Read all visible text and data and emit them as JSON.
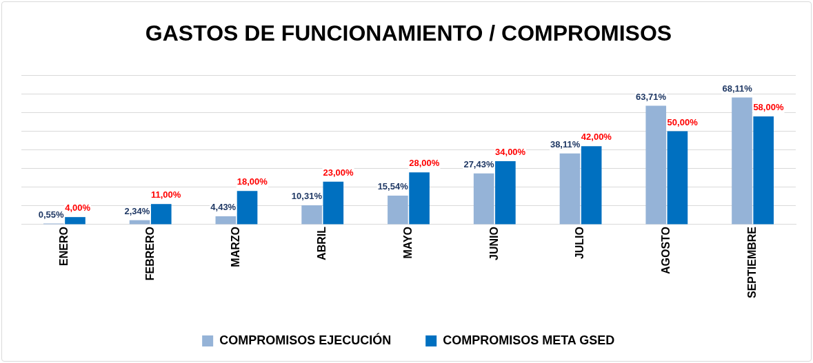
{
  "chart_data": {
    "type": "bar",
    "title": "GASTOS DE FUNCIONAMIENTO / COMPROMISOS",
    "categories": [
      "ENERO",
      "FEBRERO",
      "MARZO",
      "ABRIL",
      "MAYO",
      "JUNIO",
      "JULIO",
      "AGOSTO",
      "SEPTIEMBRE"
    ],
    "series": [
      {
        "name": "COMPROMISOS EJECUCIÓN",
        "color": "#95b3d7",
        "values": [
          0.55,
          2.34,
          4.43,
          10.31,
          15.54,
          27.43,
          38.11,
          63.71,
          68.11
        ],
        "value_labels": [
          "0,55%",
          "2,34%",
          "4,43%",
          "10,31%",
          "15,54%",
          "27,43%",
          "38,11%",
          "63,71%",
          "68,11%"
        ]
      },
      {
        "name": "COMPROMISOS META GSED",
        "color": "#0070c0",
        "values": [
          4,
          11,
          18,
          23,
          28,
          34,
          42,
          50,
          58
        ],
        "value_labels": [
          "4,00%",
          "11,00%",
          "18,00%",
          "23,00%",
          "28,00%",
          "34,00%",
          "42,00%",
          "50,00%",
          "58,00%"
        ]
      }
    ],
    "ylim": [
      0,
      80
    ],
    "yticks": [
      {
        "value": 0,
        "label": null
      },
      {
        "value": 10,
        "label": null
      },
      {
        "value": 20,
        "label": null
      },
      {
        "value": 30,
        "label": null
      },
      {
        "value": 40,
        "label": null
      },
      {
        "value": 50,
        "label": null
      },
      {
        "value": 60,
        "label": null
      },
      {
        "value": 70,
        "label": null
      },
      {
        "value": 80,
        "label": null
      }
    ],
    "grid": "y",
    "legend": "bottom",
    "tick_labels": "x"
  }
}
